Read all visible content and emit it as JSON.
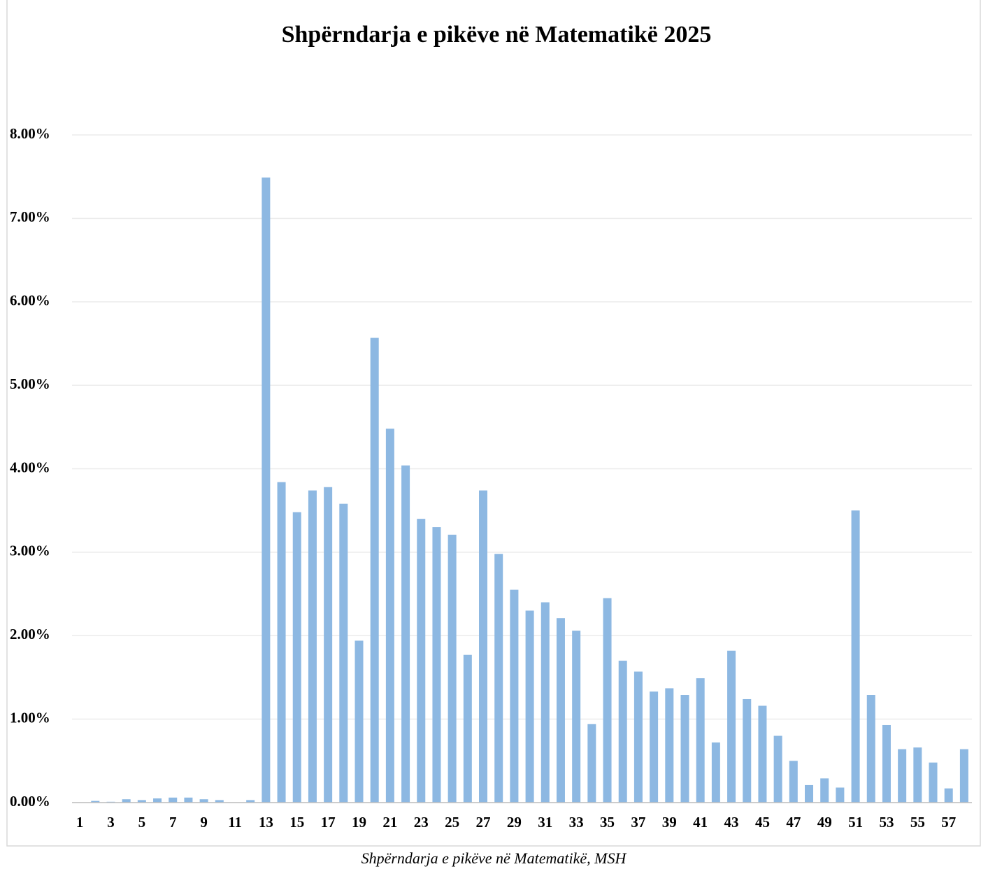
{
  "chart_data": {
    "type": "bar",
    "title": "Shpërndarja e pikëve në Matematikë 2025",
    "caption": "Shpërndarja e pikëve në Matematikë, MSH",
    "categories": [
      1,
      null,
      3,
      null,
      5,
      null,
      7,
      null,
      9,
      null,
      11,
      null,
      13,
      null,
      15,
      null,
      17,
      null,
      19,
      null,
      21,
      null,
      23,
      null,
      25,
      null,
      27,
      null,
      29,
      null,
      31,
      null,
      33,
      null,
      35,
      null,
      37,
      null,
      39,
      null,
      41,
      null,
      43,
      null,
      45,
      null,
      47,
      null,
      49,
      null,
      51,
      null,
      53,
      null,
      55,
      null,
      57,
      null
    ],
    "values": [
      0,
      0.02,
      0.01,
      0.04,
      0.03,
      0.05,
      0.06,
      0.06,
      0.04,
      0.03,
      0,
      0.03,
      7.49,
      3.84,
      3.48,
      3.74,
      3.78,
      3.58,
      1.94,
      5.57,
      4.48,
      4.04,
      3.4,
      3.3,
      3.21,
      1.77,
      3.74,
      2.98,
      2.55,
      2.3,
      2.4,
      2.21,
      2.06,
      0.94,
      2.45,
      1.7,
      1.57,
      1.33,
      1.37,
      1.29,
      1.49,
      0.72,
      1.82,
      1.24,
      1.16,
      0.8,
      0.5,
      0.21,
      0.29,
      0.18,
      3.5,
      1.29,
      0.93,
      0.64,
      0.66,
      0.48,
      0.17,
      0.64
    ],
    "color": "#8db8e2",
    "ylim": [
      0,
      8
    ],
    "yticks": [
      {
        "value": 0,
        "label": "0.00%"
      },
      {
        "value": 1,
        "label": "1.00%"
      },
      {
        "value": 2,
        "label": "2.00%"
      },
      {
        "value": 3,
        "label": "3.00%"
      },
      {
        "value": 4,
        "label": "4.00%"
      },
      {
        "value": 5,
        "label": "5.00%"
      },
      {
        "value": 6,
        "label": "6.00%"
      },
      {
        "value": 7,
        "label": "7.00%"
      },
      {
        "value": 8,
        "label": "8.00%"
      }
    ],
    "grid": true
  }
}
